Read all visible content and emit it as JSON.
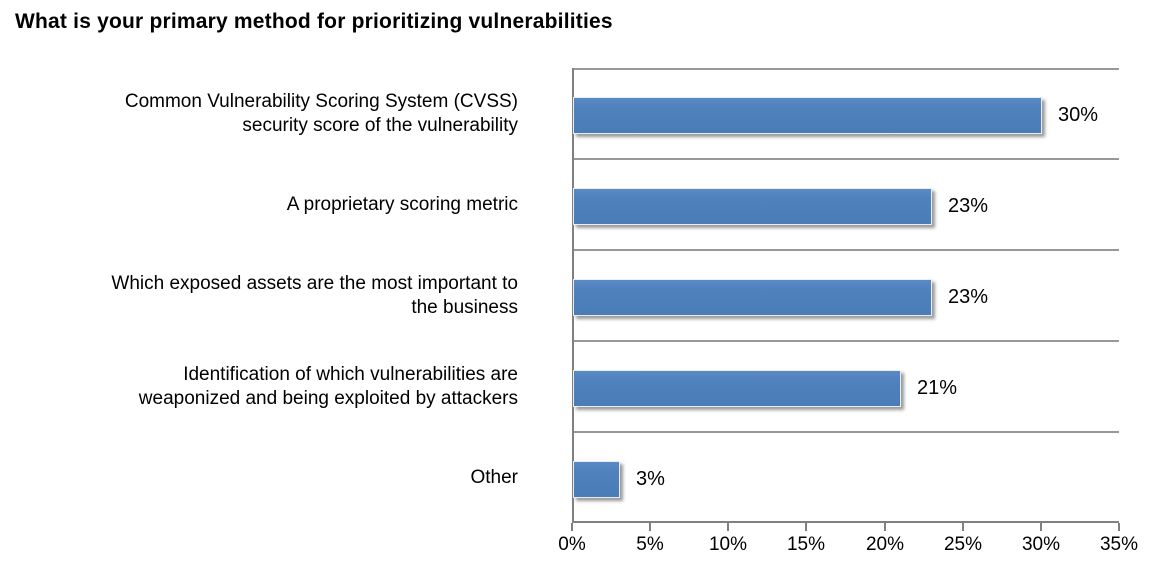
{
  "title": "What is your primary method for prioritizing vulnerabilities",
  "chart_data": {
    "type": "bar",
    "orientation": "horizontal",
    "title": "What is your primary method for prioritizing vulnerabilities",
    "categories": [
      "Common Vulnerability Scoring System (CVSS)\nsecurity score of the vulnerability",
      "A proprietary scoring metric",
      "Which exposed assets are the most important to\nthe business",
      "Identification of which vulnerabilities are\nweaponized and being exploited by attackers",
      "Other"
    ],
    "values": [
      30,
      23,
      23,
      21,
      3
    ],
    "value_labels": [
      "30%",
      "23%",
      "23%",
      "21%",
      "3%"
    ],
    "x_ticks": [
      "0%",
      "5%",
      "10%",
      "15%",
      "20%",
      "25%",
      "30%",
      "35%"
    ],
    "xlim": [
      0,
      35
    ],
    "xlabel": "",
    "ylabel": "",
    "legend": "none",
    "grid": "horizontal category separators",
    "bar_color": "#4F81BD",
    "axis_color": "#808080",
    "gridline_color": "#989898"
  }
}
